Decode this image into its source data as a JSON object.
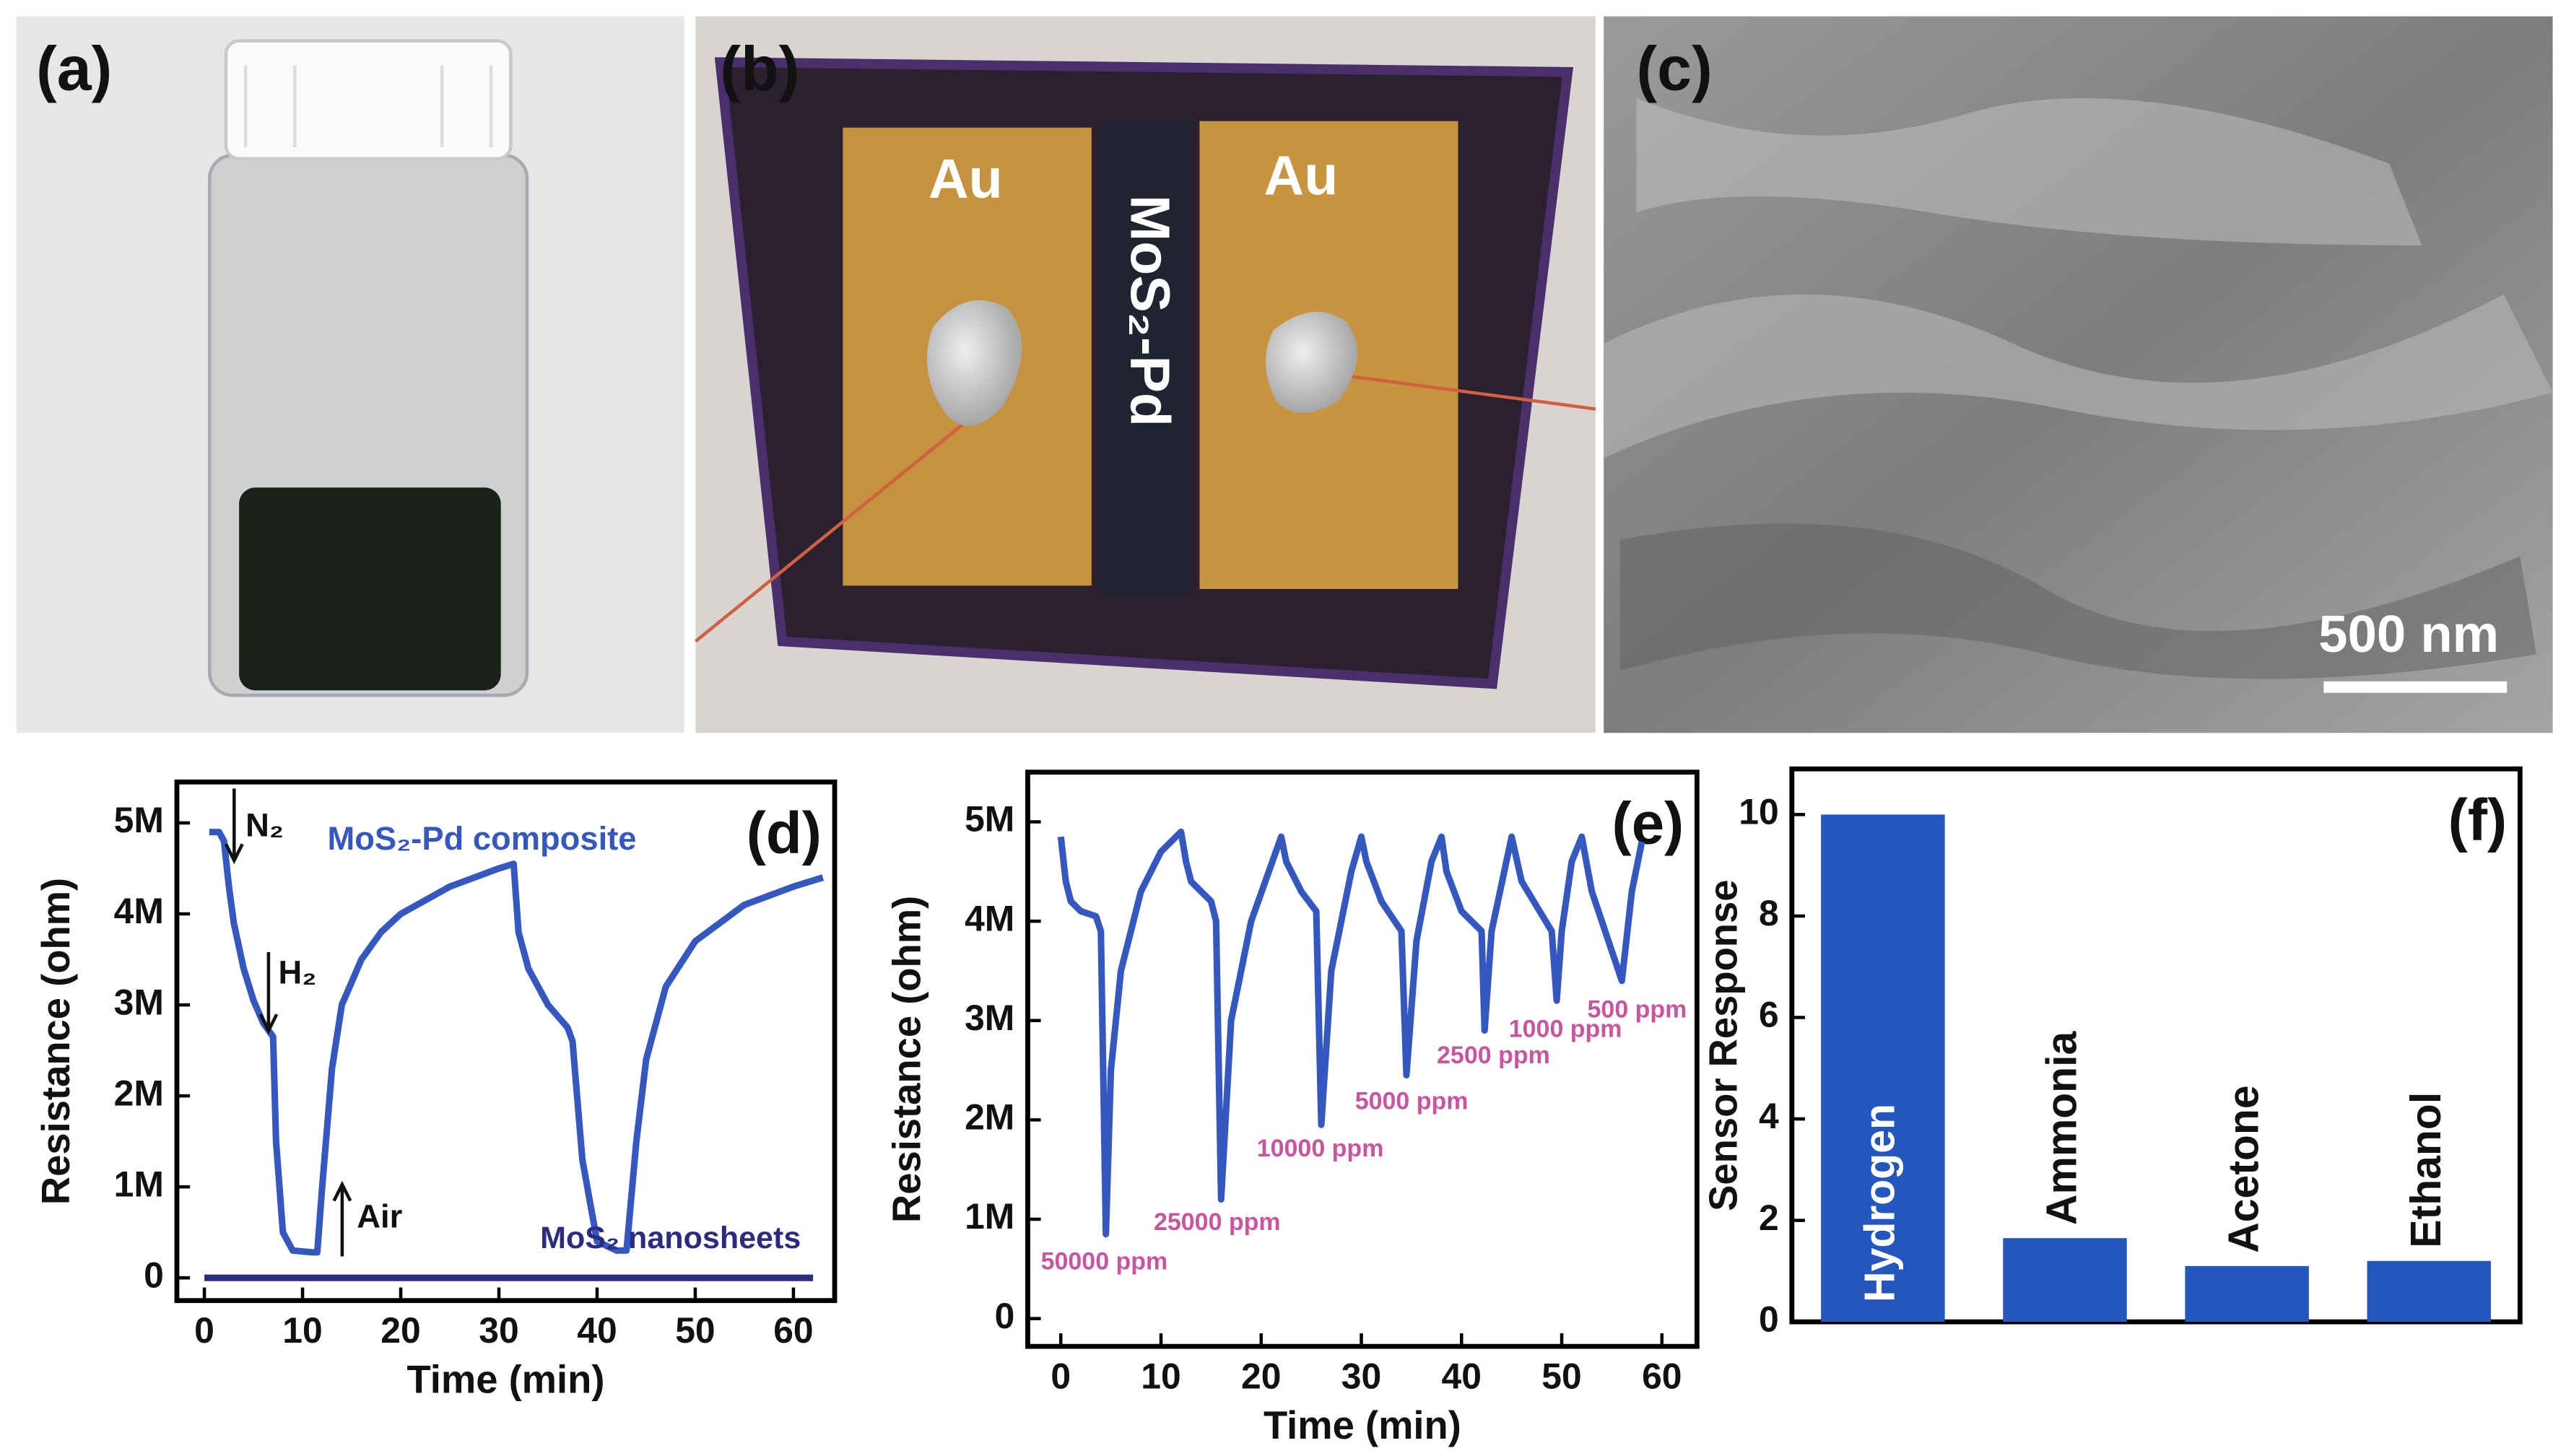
{
  "panels": {
    "a": {
      "label": "(a)"
    },
    "b": {
      "label": "(b)",
      "electrode_labels": [
        "Au",
        "Au"
      ],
      "channel_label": "MoS₂-Pd"
    },
    "c": {
      "label": "(c)",
      "scale_bar": "500 nm"
    }
  },
  "chart_data": [
    {
      "type": "line",
      "panel_label": "(d)",
      "x_label": "Time (min)",
      "y_label": "Resistance (ohm)",
      "xlim": [
        -2.8,
        64.2
      ],
      "ylim": [
        -250000,
        5450000
      ],
      "xticks": [
        0,
        10,
        20,
        30,
        40,
        50,
        60
      ],
      "yticks": [
        0,
        {
          "value": 1000000,
          "label": "1M"
        },
        {
          "value": 2000000,
          "label": "2M"
        },
        {
          "value": 3000000,
          "label": "3M"
        },
        {
          "value": 4000000,
          "label": "4M"
        },
        {
          "value": 5000000,
          "label": "5M"
        }
      ],
      "annotations": [
        "N₂",
        "H₂",
        "Air"
      ],
      "series": [
        {
          "name": "MoS₂-Pd composite",
          "color": "#3557c0",
          "x": [
            0.5,
            1.5,
            2,
            2.5,
            3,
            4,
            5,
            6,
            7,
            7.3,
            8,
            9,
            11,
            11.5,
            12,
            13,
            14,
            16,
            18,
            20,
            25,
            30,
            31.5,
            32,
            33,
            35,
            37,
            37.5,
            38.5,
            40,
            42,
            43,
            44,
            45,
            47,
            50,
            55,
            60,
            63
          ],
          "values": [
            4900000,
            4900000,
            4800000,
            4300000,
            3900000,
            3400000,
            3050000,
            2800000,
            2650000,
            1500000,
            500000,
            300000,
            280000,
            280000,
            1000000,
            2300000,
            3000000,
            3500000,
            3800000,
            4000000,
            4300000,
            4500000,
            4550000,
            3800000,
            3400000,
            3000000,
            2750000,
            2600000,
            1300000,
            400000,
            300000,
            300000,
            1500000,
            2400000,
            3200000,
            3700000,
            4100000,
            4300000,
            4400000
          ]
        },
        {
          "name": "MoS₂ nanosheets",
          "color": "#2b2b80",
          "x": [
            0,
            62
          ],
          "values": [
            0,
            0
          ]
        }
      ]
    },
    {
      "type": "line",
      "panel_label": "(e)",
      "x_label": "Time (min)",
      "y_label": "Resistance (ohm)",
      "xlim": [
        -3.3,
        63.5
      ],
      "ylim": [
        -280000,
        5500000
      ],
      "xticks": [
        0,
        10,
        20,
        30,
        40,
        50,
        60
      ],
      "yticks": [
        0,
        {
          "value": 1000000,
          "label": "1M"
        },
        {
          "value": 2000000,
          "label": "2M"
        },
        {
          "value": 3000000,
          "label": "3M"
        },
        {
          "value": 4000000,
          "label": "4M"
        },
        {
          "value": 5000000,
          "label": "5M"
        }
      ],
      "annotations": [
        "50000 ppm",
        "25000 ppm",
        "10000 ppm",
        "5000 ppm",
        "2500 ppm",
        "1000 ppm",
        "500 ppm"
      ],
      "series": [
        {
          "color": "#3557c0",
          "x": [
            0,
            0.5,
            1,
            2,
            3.5,
            4,
            4.5,
            5,
            6,
            8,
            10,
            12,
            12.5,
            13,
            15,
            15.5,
            16,
            17,
            19,
            22,
            22.5,
            24,
            25.5,
            26,
            27,
            29,
            30,
            30.5,
            32,
            34,
            34.5,
            35.5,
            37,
            38,
            38.5,
            40,
            42,
            42.3,
            43,
            45,
            46,
            49,
            49.5,
            50,
            51,
            52,
            53,
            55,
            56,
            57,
            58
          ],
          "values": [
            4850000,
            4400000,
            4200000,
            4100000,
            4050000,
            3900000,
            850000,
            2500000,
            3500000,
            4300000,
            4700000,
            4900000,
            4600000,
            4400000,
            4200000,
            4000000,
            1200000,
            3000000,
            4000000,
            4850000,
            4600000,
            4300000,
            4100000,
            1950000,
            3500000,
            4500000,
            4850000,
            4600000,
            4200000,
            3900000,
            2450000,
            3800000,
            4600000,
            4850000,
            4500000,
            4100000,
            3900000,
            2900000,
            3900000,
            4850000,
            4400000,
            3900000,
            3200000,
            3900000,
            4600000,
            4850000,
            4300000,
            3700000,
            3400000,
            4300000,
            4800000
          ]
        }
      ]
    },
    {
      "type": "bar",
      "panel_label": "(f)",
      "y_label": "Sensor Response",
      "ylim": [
        0,
        10.9
      ],
      "yticks": [
        0,
        2,
        4,
        6,
        8,
        10
      ],
      "color": "#2456bd",
      "categories": [
        "Hydrogen",
        "Ammonia",
        "Acetone",
        "Ethanol"
      ],
      "values": [
        10,
        1.65,
        1.1,
        1.2
      ]
    }
  ]
}
